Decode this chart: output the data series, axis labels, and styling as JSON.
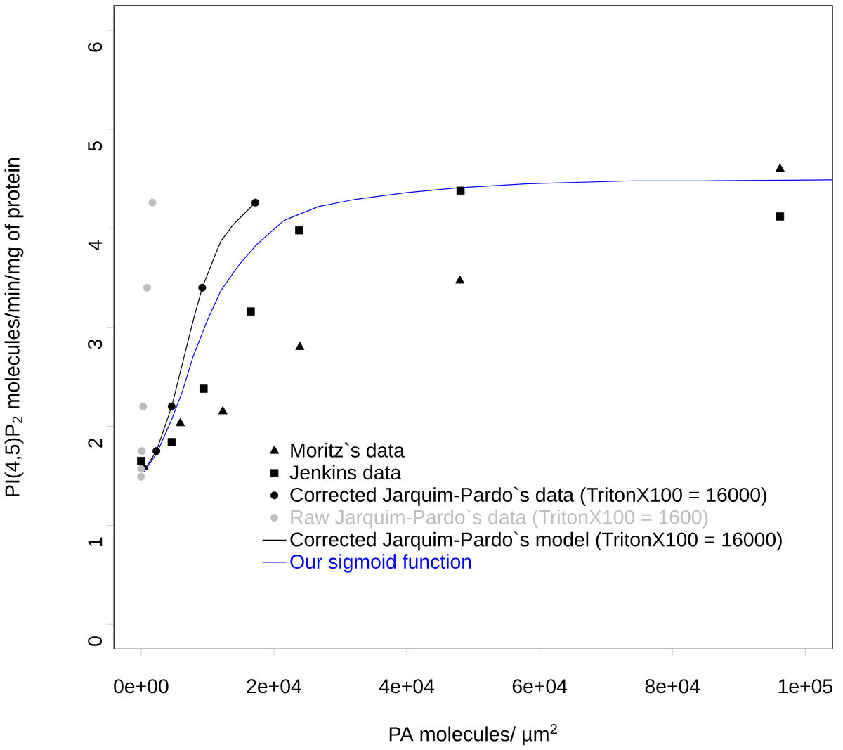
{
  "chart_data": {
    "type": "scatter",
    "xlabel": "PA molecules/ µm$^{2}$",
    "ylabel": "PI(4,5)P$_{2}$ molecules/min/mg of protein",
    "xlim": [
      -4100,
      104100
    ],
    "ylim": [
      -0.25,
      6.25
    ],
    "xticks": [
      {
        "value": 0,
        "label": "0e+00"
      },
      {
        "value": 20000,
        "label": "2e+04"
      },
      {
        "value": 40000,
        "label": "4e+04"
      },
      {
        "value": 60000,
        "label": "6e+04"
      },
      {
        "value": 80000,
        "label": "8e+04"
      },
      {
        "value": 100000,
        "label": "1e+05"
      }
    ],
    "yticks": [
      0,
      1,
      2,
      3,
      4,
      5,
      6
    ],
    "grid": false,
    "legend": "bottom",
    "series": [
      {
        "name": "Moritz`s data",
        "marker": "triangle",
        "color": "#000000",
        "x": [
          400,
          5900,
          12300,
          23900,
          48000,
          96200
        ],
        "values": [
          1.59,
          2.03,
          2.15,
          2.8,
          3.47,
          4.6
        ]
      },
      {
        "name": "Jenkins data",
        "marker": "square",
        "color": "#000000",
        "x": [
          0,
          4600,
          9400,
          16500,
          23800,
          48100,
          96200
        ],
        "values": [
          1.65,
          1.84,
          2.38,
          3.16,
          3.98,
          4.38,
          4.12
        ]
      },
      {
        "name": "Corrected Jarquim-Pardo`s data (TritonX100 = 16000)",
        "marker": "circle",
        "color": "#000000",
        "x": [
          2300,
          4600,
          9200,
          17200
        ],
        "values": [
          1.75,
          2.2,
          3.4,
          4.26
        ]
      },
      {
        "name": "Raw Jarquim-Pardo`s data (TritonX100 = 1600)",
        "marker": "circle",
        "color": "#bebebe",
        "x": [
          1700,
          900,
          300,
          100,
          0,
          0
        ],
        "values": [
          4.26,
          3.4,
          2.2,
          1.75,
          1.57,
          1.49
        ]
      },
      {
        "name": "Corrected Jarquim-Pardo`s model (TritonX100 = 16000)",
        "type": "line",
        "marker": "none",
        "line_style": "solid",
        "color": "#000000",
        "x": [
          400,
          2300,
          4600,
          6200,
          7800,
          9200,
          10900,
          12000,
          13900,
          17200
        ],
        "values": [
          1.55,
          1.75,
          2.2,
          2.63,
          3.06,
          3.4,
          3.69,
          3.87,
          4.04,
          4.26
        ]
      },
      {
        "name": "Our sigmoid function",
        "type": "line",
        "marker": "none",
        "line_style": "solid",
        "color": "#0000ff",
        "x": [
          400,
          2300,
          4600,
          6200,
          7800,
          9900,
          12000,
          14600,
          17300,
          21500,
          26700,
          32000,
          39900,
          47800,
          58300,
          74100,
          84600,
          104000
        ],
        "values": [
          1.54,
          1.72,
          2.07,
          2.35,
          2.7,
          3.06,
          3.37,
          3.62,
          3.83,
          4.08,
          4.22,
          4.29,
          4.36,
          4.41,
          4.45,
          4.48,
          4.48,
          4.49
        ]
      }
    ]
  }
}
